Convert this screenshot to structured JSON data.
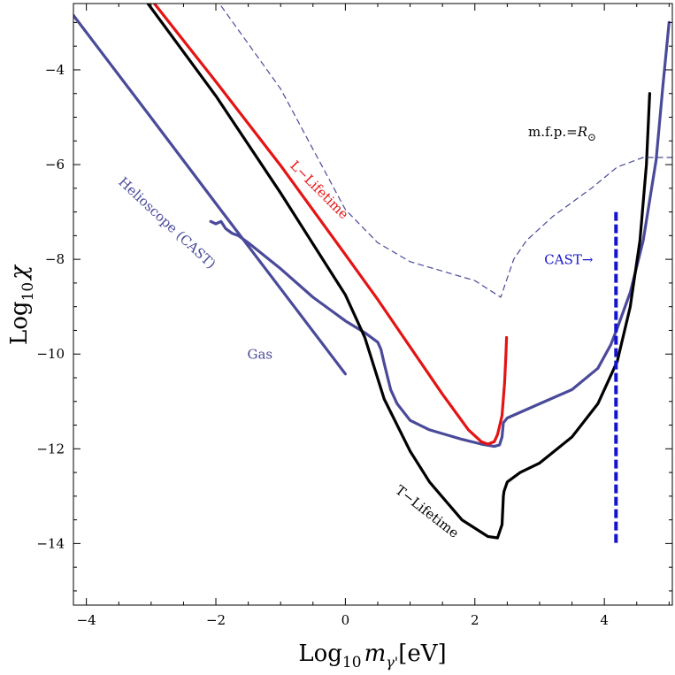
{
  "chart_data": {
    "type": "line",
    "xlabel": {
      "base": "Log",
      "sub": "10",
      "var": "m",
      "varsub": "γ'",
      "unit": "[eV]"
    },
    "ylabel": {
      "base": "Log",
      "sub": "10",
      "var": "χ"
    },
    "xlim": [
      -4.2,
      5.05
    ],
    "ylim": [
      -15.3,
      -2.6
    ],
    "x_ticks": [
      -4,
      -2,
      0,
      2,
      4
    ],
    "x_tick_labels": [
      "−4",
      "−2",
      "0",
      "2",
      "4"
    ],
    "y_ticks": [
      -14,
      -12,
      -10,
      -8,
      -6,
      -4
    ],
    "y_tick_labels": [
      "−14",
      "−12",
      "−10",
      "−8",
      "−6",
      "−4"
    ],
    "colors": {
      "helioscope": "#4a4a9a",
      "gas": "#4a4a9a",
      "l_lifetime": "#e41414",
      "t_lifetime": "#000000",
      "mfp": "#4a4a9a",
      "cast": "#1414cc"
    },
    "series": [
      {
        "name": "helioscope-cast",
        "color_key": "helioscope",
        "dashed": false,
        "width": 3.2,
        "x": [
          -4.2,
          -3,
          -2,
          -1,
          0
        ],
        "y": [
          -2.85,
          -5.01,
          -6.82,
          -8.62,
          -10.42
        ]
      },
      {
        "name": "gas",
        "color_key": "gas",
        "dashed": false,
        "width": 3.2,
        "x": [
          -2.08,
          -2.0,
          -1.92,
          -1.85,
          -1.75,
          -1.65,
          -1.5,
          -1.0,
          -0.5,
          0.0,
          0.3,
          0.5,
          0.55,
          0.6,
          0.7,
          0.8,
          1.0,
          1.3,
          1.8,
          2.1,
          2.3,
          2.38,
          2.42,
          2.44,
          2.5,
          3.0,
          3.5,
          3.9,
          4.1,
          4.2,
          4.4,
          4.6,
          4.8,
          4.9,
          5.0
        ],
        "y": [
          -7.2,
          -7.25,
          -7.2,
          -7.35,
          -7.45,
          -7.5,
          -7.65,
          -8.2,
          -8.8,
          -9.3,
          -9.55,
          -9.75,
          -9.9,
          -10.2,
          -10.75,
          -11.05,
          -11.4,
          -11.6,
          -11.8,
          -11.9,
          -11.95,
          -11.92,
          -11.75,
          -11.45,
          -11.35,
          -11.05,
          -10.75,
          -10.3,
          -9.8,
          -9.45,
          -8.7,
          -7.6,
          -5.9,
          -4.4,
          -3.0
        ]
      },
      {
        "name": "l-lifetime",
        "color_key": "l_lifetime",
        "dashed": false,
        "width": 3.2,
        "x": [
          -2.95,
          -2,
          -1,
          0,
          0.5,
          1.0,
          1.5,
          1.9,
          2.1,
          2.2,
          2.3,
          2.35,
          2.42,
          2.46,
          2.48,
          2.49
        ],
        "y": [
          -2.6,
          -4.25,
          -6.02,
          -7.9,
          -8.85,
          -9.85,
          -10.85,
          -11.6,
          -11.85,
          -11.9,
          -11.85,
          -11.7,
          -11.3,
          -10.6,
          -10.0,
          -9.65
        ]
      },
      {
        "name": "t-lifetime",
        "color_key": "t_lifetime",
        "dashed": false,
        "width": 3.2,
        "x": [
          -3.05,
          -2,
          -1,
          0,
          0.3,
          0.6,
          1.0,
          1.3,
          1.8,
          2.2,
          2.35,
          2.42,
          2.44,
          2.45,
          2.5,
          2.7,
          3.0,
          3.5,
          3.9,
          4.2,
          4.4,
          4.55,
          4.65,
          4.7
        ],
        "y": [
          -2.6,
          -4.55,
          -6.6,
          -8.75,
          -9.65,
          -10.95,
          -12.05,
          -12.7,
          -13.5,
          -13.85,
          -13.88,
          -13.6,
          -13.0,
          -12.9,
          -12.7,
          -12.5,
          -12.3,
          -11.75,
          -11.05,
          -10.15,
          -9.0,
          -7.6,
          -6.0,
          -4.5
        ]
      },
      {
        "name": "mfp-dashed",
        "color_key": "mfp",
        "dashed": true,
        "width": 1.2,
        "x": [
          -1.92,
          -1,
          0,
          0.5,
          1.0,
          2.0,
          2.4,
          2.6,
          2.8,
          3.2,
          3.8,
          4.2,
          4.6,
          5.05
        ],
        "y": [
          -2.65,
          -4.4,
          -6.95,
          -7.65,
          -8.05,
          -8.45,
          -8.8,
          -8.0,
          -7.6,
          -7.1,
          -6.5,
          -6.05,
          -5.85,
          -5.85
        ]
      },
      {
        "name": "cast-limit",
        "color_key": "cast",
        "dashed": true,
        "width": 4,
        "x": [
          4.18,
          4.18
        ],
        "y": [
          -7.0,
          -14.0
        ]
      }
    ],
    "annotations": [
      {
        "name": "helioscope-label",
        "text": "Helioscope (CAST)",
        "x": -2.8,
        "y": -7.3,
        "angle": 43,
        "color_key": "helioscope"
      },
      {
        "name": "l-lifetime-label",
        "text": "L−Lifetime",
        "x": -0.45,
        "y": -6.6,
        "angle": 45,
        "color_key": "l_lifetime"
      },
      {
        "name": "gas-label",
        "text": "Gas",
        "x": -1.32,
        "y": -10.1,
        "angle": 0,
        "color_key": "helioscope"
      },
      {
        "name": "t-lifetime-label",
        "text": "T−Lifetime",
        "x": 1.22,
        "y": -13.4,
        "angle": 38,
        "color_key": "t_lifetime"
      },
      {
        "name": "cast-label",
        "text": "CAST→",
        "x": 3.45,
        "y": -8.1,
        "angle": 0,
        "color_key": "cast"
      },
      {
        "name": "mfp-label",
        "text": "m.f.p.=",
        "sub": "⊙",
        "var": "R",
        "x": 3.35,
        "y": -5.4,
        "angle": 0,
        "color_key": "t_lifetime"
      }
    ]
  }
}
